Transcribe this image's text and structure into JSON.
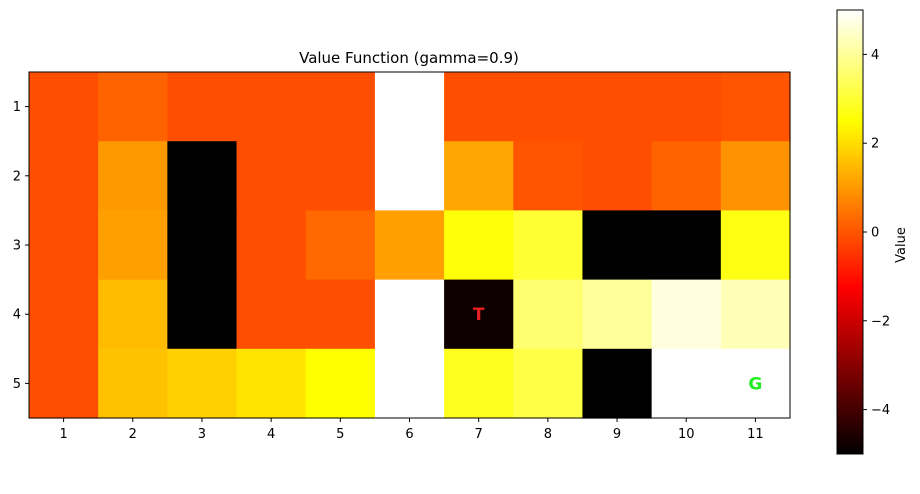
{
  "chart_data": {
    "type": "heatmap",
    "title": "Value Function (gamma=0.9)",
    "xlabel": "",
    "ylabel": "",
    "x_tick_labels": [
      "1",
      "2",
      "3",
      "4",
      "5",
      "6",
      "7",
      "8",
      "9",
      "10",
      "11"
    ],
    "y_tick_labels": [
      "1",
      "2",
      "3",
      "4",
      "5"
    ],
    "colormap": "hot",
    "vmin": -5,
    "vmax": 5,
    "values": [
      [
        -0.1,
        0.2,
        -0.1,
        -0.1,
        -0.1,
        5.0,
        -0.1,
        -0.1,
        -0.1,
        -0.1,
        0.0
      ],
      [
        -0.1,
        1.0,
        -5.0,
        -0.1,
        -0.1,
        5.0,
        1.2,
        0.0,
        -0.1,
        0.2,
        0.9
      ],
      [
        -0.1,
        1.1,
        -5.0,
        -0.1,
        0.3,
        1.1,
        2.6,
        3.0,
        -5.0,
        -5.0,
        2.7
      ],
      [
        -0.1,
        1.5,
        -5.0,
        -0.1,
        -0.1,
        5.0,
        -4.8,
        3.6,
        4.0,
        4.7,
        4.3
      ],
      [
        -0.1,
        1.6,
        1.8,
        2.1,
        2.5,
        5.0,
        2.8,
        3.2,
        -5.0,
        5.0,
        5.0
      ]
    ],
    "annotations": [
      {
        "text": "T",
        "row": 4,
        "col": 7,
        "color": "#e82020"
      },
      {
        "text": "G",
        "row": 5,
        "col": 11,
        "color": "#22ee22"
      }
    ],
    "colorbar": {
      "label": "Value",
      "ticks": [
        4,
        2,
        0,
        -2,
        -4
      ],
      "tick_labels": [
        "4",
        "2",
        "0",
        "−2",
        "−4"
      ]
    }
  }
}
